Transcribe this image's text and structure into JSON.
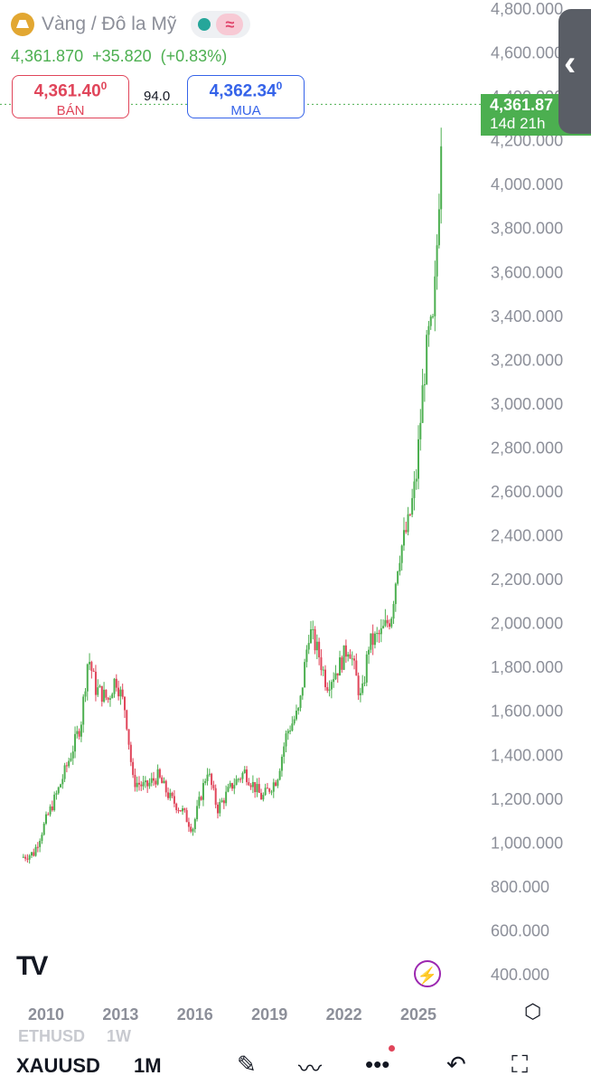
{
  "header": {
    "title": "Vàng / Đô la Mỹ",
    "icon": "gold-bars-icon",
    "status_icon": "market-open-dot",
    "indicator_icon": "wave-icon",
    "price": "4,361.870",
    "change": "+35.820",
    "change_pct": "(+0.83%)"
  },
  "quote": {
    "sell_price": "4,361.40",
    "sell_sup": "0",
    "sell_label": "BÁN",
    "spread": "94.0",
    "buy_price": "4,362.34",
    "buy_sup": "0",
    "buy_label": "MUA"
  },
  "last_price_tag": {
    "price": "4,361.87",
    "countdown": "14d 21h"
  },
  "side_handle_icon": "chevron-left-icon",
  "footer": {
    "logo": "TV",
    "bolt_icon": "lightning-icon",
    "settings_icon": "hexagon-settings-icon",
    "ghost_symbol": "ETHUSD",
    "ghost_interval": "1W"
  },
  "toolbar": {
    "symbol": "XAUUSD",
    "interval": "1M",
    "icons": [
      "pen-icon",
      "chart-type-icon",
      "more-icon",
      "undo-icon",
      "fullscreen-icon"
    ]
  },
  "colors": {
    "up": "#4caf50",
    "down": "#e0455a",
    "sell": "#e0455a",
    "buy": "#3563e9",
    "dotted_line": "#4caf50"
  },
  "chart_data": {
    "type": "candlestick",
    "y_ticks": [
      "400.000",
      "600.000",
      "800.000",
      "1,000.000",
      "1,200.000",
      "1,400.000",
      "1,600.000",
      "1,800.000",
      "2,000.000",
      "2,200.000",
      "2,400.000",
      "2,600.000",
      "2,800.000",
      "3,000.000",
      "3,200.000",
      "3,400.000",
      "3,600.000",
      "3,800.000",
      "4,000.000",
      "4,200.000",
      "4,400.000",
      "4,600.000",
      "4,800.000"
    ],
    "x_ticks": [
      "2010",
      "2013",
      "2016",
      "2019",
      "2022",
      "2025"
    ],
    "ylim": [
      400,
      4800
    ],
    "last_price": 4361.87,
    "grid": false,
    "series": [
      {
        "year": 2009.0,
        "close": 930
      },
      {
        "year": 2009.5,
        "close": 950
      },
      {
        "year": 2010.0,
        "close": 1100
      },
      {
        "year": 2010.5,
        "close": 1240
      },
      {
        "year": 2011.0,
        "close": 1400
      },
      {
        "year": 2011.4,
        "close": 1540
      },
      {
        "year": 2011.7,
        "close": 1850
      },
      {
        "year": 2012.0,
        "close": 1700
      },
      {
        "year": 2012.5,
        "close": 1650
      },
      {
        "year": 2012.8,
        "close": 1750
      },
      {
        "year": 2013.2,
        "close": 1600
      },
      {
        "year": 2013.5,
        "close": 1280
      },
      {
        "year": 2014.0,
        "close": 1250
      },
      {
        "year": 2014.5,
        "close": 1300
      },
      {
        "year": 2015.0,
        "close": 1200
      },
      {
        "year": 2015.5,
        "close": 1140
      },
      {
        "year": 2015.9,
        "close": 1060
      },
      {
        "year": 2016.5,
        "close": 1330
      },
      {
        "year": 2016.9,
        "close": 1150
      },
      {
        "year": 2017.5,
        "close": 1260
      },
      {
        "year": 2018.0,
        "close": 1320
      },
      {
        "year": 2018.7,
        "close": 1200
      },
      {
        "year": 2019.3,
        "close": 1290
      },
      {
        "year": 2019.7,
        "close": 1500
      },
      {
        "year": 2020.2,
        "close": 1600
      },
      {
        "year": 2020.6,
        "close": 1970
      },
      {
        "year": 2021.0,
        "close": 1850
      },
      {
        "year": 2021.3,
        "close": 1720
      },
      {
        "year": 2021.8,
        "close": 1800
      },
      {
        "year": 2022.2,
        "close": 1900
      },
      {
        "year": 2022.7,
        "close": 1640
      },
      {
        "year": 2023.0,
        "close": 1900
      },
      {
        "year": 2023.5,
        "close": 1950
      },
      {
        "year": 2023.9,
        "close": 2030
      },
      {
        "year": 2024.2,
        "close": 2300
      },
      {
        "year": 2024.6,
        "close": 2450
      },
      {
        "year": 2024.9,
        "close": 2650
      },
      {
        "year": 2025.2,
        "close": 3100
      },
      {
        "year": 2025.4,
        "close": 3300
      },
      {
        "year": 2025.6,
        "close": 3350
      },
      {
        "year": 2025.8,
        "close": 3850
      },
      {
        "year": 2025.95,
        "close": 4361.87
      }
    ]
  }
}
